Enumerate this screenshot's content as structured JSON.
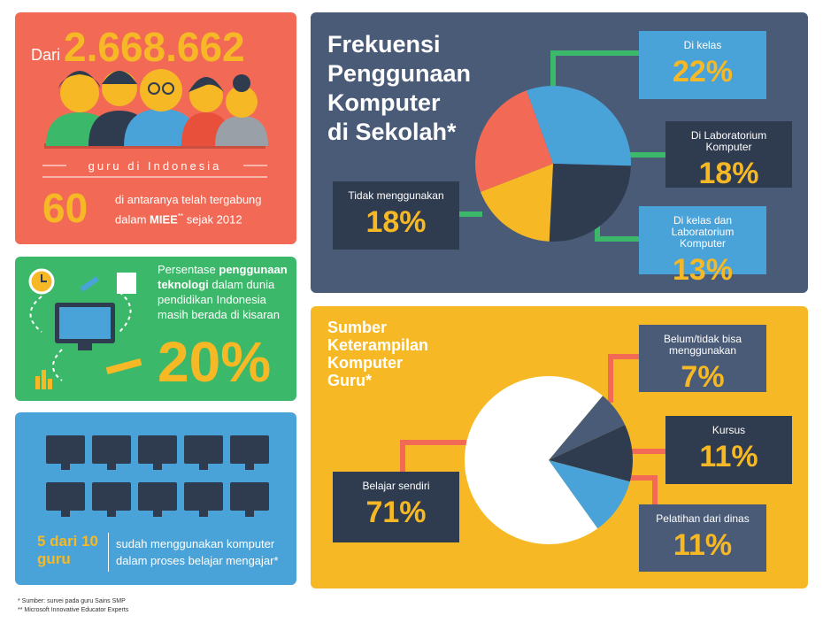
{
  "teachers": {
    "prefix": "Dari",
    "count": "2.668.662",
    "caption": "guru di Indonesia",
    "number": "60",
    "line1": "di antaranya telah tergabung",
    "line2_pre": "dalam",
    "line2_bold": "MIEE",
    "line2_sup": "**",
    "line2_post": "sejak 2012"
  },
  "technology": {
    "pre": "Persentase",
    "bold": "penggunaan teknologi",
    "post": "dalam dunia pendidikan Indonesia masih berada di kisaran",
    "percent": "20%"
  },
  "computers": {
    "highlight": "5 dari 10 guru",
    "text": "sudah menggunakan komputer dalam proses belajar mengajar*"
  },
  "usage": {
    "type": "pie",
    "title": [
      "Frekuensi",
      "Penggunaan",
      "Komputer",
      "di Sekolah*"
    ],
    "slices": [
      {
        "label": "Di kelas",
        "value": 22,
        "value_label": "22%",
        "color": "#4aa3d8"
      },
      {
        "label": "Di Laboratorium Komputer",
        "value": 18,
        "value_label": "18%",
        "color": "#2f3b4f"
      },
      {
        "label": "Di kelas dan Laboratorium Komputer",
        "value": 13,
        "value_label": "13%",
        "color": "#f6b925"
      },
      {
        "label": "Tidak menggunakan",
        "value": 18,
        "value_label": "18%",
        "color": "#f26a56"
      }
    ]
  },
  "skills": {
    "type": "pie",
    "title": [
      "Sumber",
      "Keterampilan",
      "Komputer",
      "Guru*"
    ],
    "slices": [
      {
        "label": "Belum/tidak bisa menggunakan",
        "value": 7,
        "value_label": "7%",
        "color": "#4a5b78"
      },
      {
        "label": "Kursus",
        "value": 11,
        "value_label": "11%",
        "color": "#2f3b4f"
      },
      {
        "label": "Pelatihan dari dinas",
        "value": 11,
        "value_label": "11%",
        "color": "#4aa3d8"
      },
      {
        "label": "Belajar sendiri",
        "value": 71,
        "value_label": "71%",
        "color": "#ffffff"
      }
    ]
  },
  "footnotes": [
    "* Sumber: survei pada guru Sains SMP",
    "** Microsoft Innovative Educator Experts"
  ]
}
